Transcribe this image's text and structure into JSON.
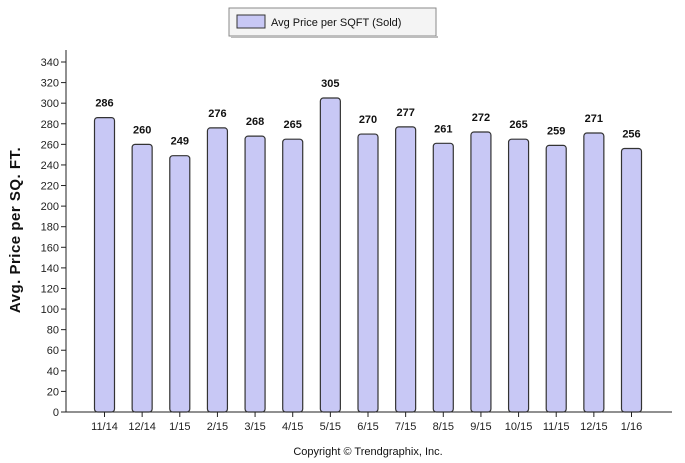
{
  "chart_data": {
    "type": "bar",
    "categories": [
      "11/14",
      "12/14",
      "1/15",
      "2/15",
      "3/15",
      "4/15",
      "5/15",
      "6/15",
      "7/15",
      "8/15",
      "9/15",
      "10/15",
      "11/15",
      "12/15",
      "1/16"
    ],
    "series": [
      {
        "name": "Avg Price per SQFT (Sold)",
        "values": [
          286,
          260,
          249,
          276,
          268,
          265,
          305,
          270,
          277,
          261,
          272,
          265,
          259,
          271,
          256
        ],
        "color": "#c8c8f5",
        "stroke": "#333333"
      }
    ],
    "ylabel": "Avg. Price per SQ. FT.",
    "ylim": [
      0,
      340
    ],
    "ytick_step": 20,
    "grid": false,
    "legend": "top-center"
  },
  "footer": {
    "text": "Copyright © Trendgraphix, Inc."
  }
}
